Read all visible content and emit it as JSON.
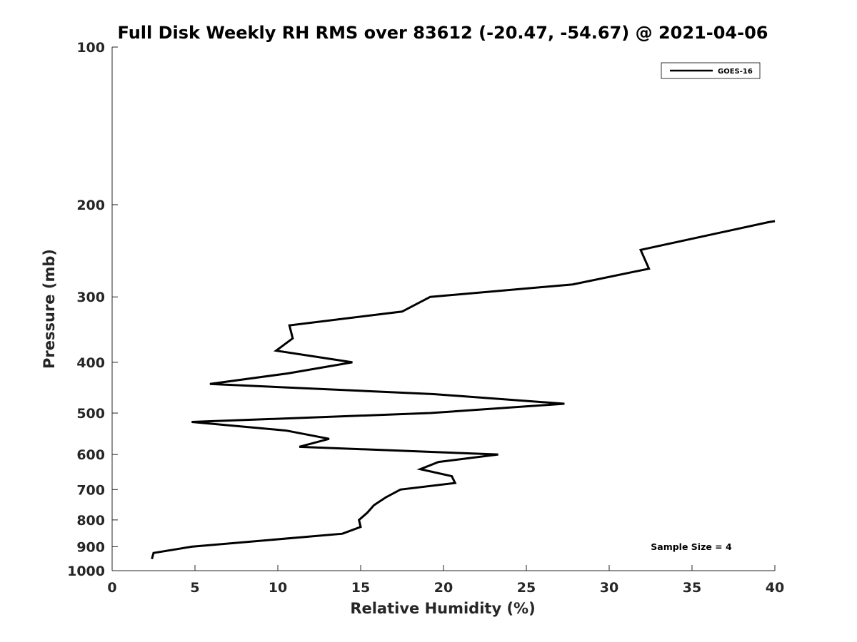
{
  "chart_data": {
    "type": "line",
    "title": "Full Disk Weekly RH RMS over 83612 (-20.47, -54.67) @ 2021-04-06",
    "xlabel": "Relative Humidity (%)",
    "ylabel": "Pressure (mb)",
    "xlim": [
      0,
      40
    ],
    "ylim": [
      100,
      1000
    ],
    "y_scale": "log",
    "y_reversed": true,
    "xticks": [
      0,
      5,
      10,
      15,
      20,
      25,
      30,
      35,
      40
    ],
    "yticks": [
      100,
      200,
      300,
      400,
      500,
      600,
      700,
      800,
      900,
      1000
    ],
    "grid": false,
    "legend_position": "top-right",
    "series": [
      {
        "name": "GOES-16",
        "color": "#000000",
        "points": [
          {
            "x": 40.0,
            "y": 215
          },
          {
            "x": 39.6,
            "y": 216
          },
          {
            "x": 31.9,
            "y": 244
          },
          {
            "x": 32.4,
            "y": 265
          },
          {
            "x": 27.8,
            "y": 284
          },
          {
            "x": 19.2,
            "y": 300
          },
          {
            "x": 17.5,
            "y": 320
          },
          {
            "x": 10.7,
            "y": 340
          },
          {
            "x": 10.9,
            "y": 360
          },
          {
            "x": 9.9,
            "y": 380
          },
          {
            "x": 14.5,
            "y": 400
          },
          {
            "x": 10.6,
            "y": 420
          },
          {
            "x": 5.9,
            "y": 440
          },
          {
            "x": 19.4,
            "y": 460
          },
          {
            "x": 27.3,
            "y": 480
          },
          {
            "x": 19.2,
            "y": 500
          },
          {
            "x": 4.8,
            "y": 520
          },
          {
            "x": 10.5,
            "y": 540
          },
          {
            "x": 13.1,
            "y": 560
          },
          {
            "x": 11.3,
            "y": 580
          },
          {
            "x": 23.3,
            "y": 600
          },
          {
            "x": 19.7,
            "y": 620
          },
          {
            "x": 18.6,
            "y": 640
          },
          {
            "x": 20.5,
            "y": 660
          },
          {
            "x": 20.7,
            "y": 680
          },
          {
            "x": 17.4,
            "y": 700
          },
          {
            "x": 16.5,
            "y": 725
          },
          {
            "x": 15.8,
            "y": 750
          },
          {
            "x": 15.4,
            "y": 775
          },
          {
            "x": 14.9,
            "y": 800
          },
          {
            "x": 15.0,
            "y": 825
          },
          {
            "x": 13.9,
            "y": 850
          },
          {
            "x": 4.8,
            "y": 900
          },
          {
            "x": 2.5,
            "y": 925
          },
          {
            "x": 2.4,
            "y": 950
          }
        ]
      }
    ],
    "annotations": [
      {
        "text": "Sample Size = 4",
        "position": "bottom-right"
      }
    ]
  }
}
